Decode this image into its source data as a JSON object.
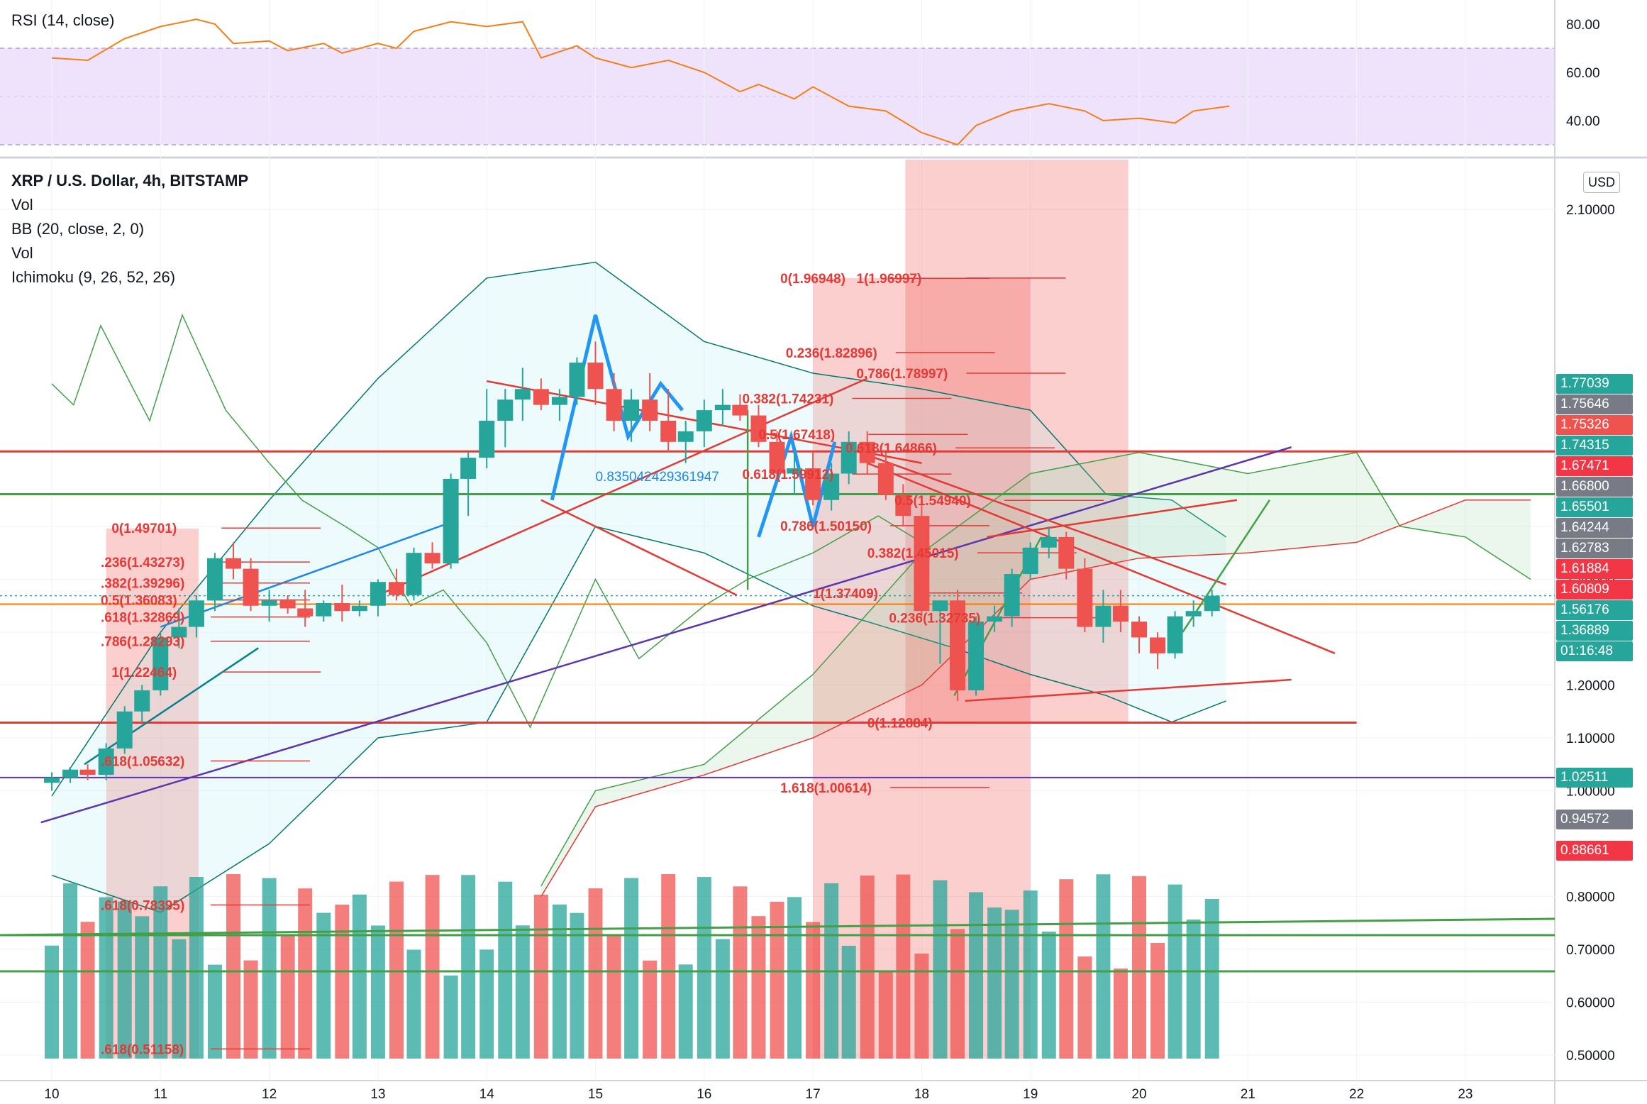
{
  "rsi": {
    "label": "RSI (14, close)",
    "ticks": [
      "80.00",
      "60.00",
      "40.00"
    ],
    "tick_values": [
      80,
      60,
      40
    ],
    "band": [
      30,
      70
    ],
    "color": "#f57f17"
  },
  "main": {
    "legend": [
      "XRP / U.S. Dollar, 4h, BITSTAMP",
      "Vol",
      "BB (20, close, 2, 0)",
      "Vol",
      "Ichimoku (9, 26, 52, 26)"
    ],
    "currency": "USD",
    "y_ticks": [
      "2.10000",
      "1.50000",
      "1.40000",
      "1.30000",
      "1.20000",
      "1.10000",
      "1.00000",
      "0.80000",
      "0.70000",
      "0.60000",
      "0.50000"
    ],
    "y_tick_values": [
      2.1,
      1.5,
      1.4,
      1.3,
      1.2,
      1.1,
      1.0,
      0.8,
      0.7,
      0.6,
      0.5
    ],
    "x_ticks": [
      "10",
      "11",
      "12",
      "13",
      "14",
      "15",
      "16",
      "17",
      "18",
      "19",
      "20",
      "21",
      "22",
      "23"
    ],
    "x_tick_positions": [
      10,
      11,
      12,
      13,
      14,
      15,
      16,
      17,
      18,
      19,
      20,
      21,
      22,
      23
    ],
    "countdown": "01:16:48"
  },
  "price_tags": [
    {
      "text": "1.77039",
      "value": 1.77039,
      "color": "#26a69a"
    },
    {
      "text": "1.75646",
      "value": 1.75646,
      "color": "#787b86"
    },
    {
      "text": "1.75326",
      "value": 1.75326,
      "color": "#ef5350"
    },
    {
      "text": "1.74315",
      "value": 1.74315,
      "color": "#26a69a"
    },
    {
      "text": "1.67471",
      "value": 1.67471,
      "color": "#f23645"
    },
    {
      "text": "1.66800",
      "value": 1.668,
      "color": "#787b86"
    },
    {
      "text": "1.65501",
      "value": 1.65501,
      "color": "#26a69a"
    },
    {
      "text": "1.64244",
      "value": 1.64244,
      "color": "#787b86"
    },
    {
      "text": "1.62783",
      "value": 1.62783,
      "color": "#787b86"
    },
    {
      "text": "1.61884",
      "value": 1.61884,
      "color": "#f23645"
    },
    {
      "text": "1.60809",
      "value": 1.60809,
      "color": "#f23645"
    },
    {
      "text": "1.56176",
      "value": 1.56176,
      "color": "#26a69a"
    },
    {
      "text": "1.36889",
      "value": 1.36889,
      "color": "#26a69a"
    },
    {
      "text": "1.02511",
      "value": 1.02511,
      "color": "#26a69a"
    },
    {
      "text": "0.94572",
      "value": 0.94572,
      "color": "#787b86"
    },
    {
      "text": "0.88661",
      "value": 0.88661,
      "color": "#f23645"
    }
  ],
  "fib_labels": [
    {
      "text": "0(1.49701)",
      "x": 10.55,
      "y": 1.49701
    },
    {
      "text": ".236(1.43273)",
      "x": 10.45,
      "y": 1.43273
    },
    {
      "text": ".382(1.39296)",
      "x": 10.45,
      "y": 1.39296
    },
    {
      "text": "0.5(1.36083)",
      "x": 10.45,
      "y": 1.36083
    },
    {
      "text": ".618(1.32869)",
      "x": 10.45,
      "y": 1.32869
    },
    {
      "text": ".786(1.28293)",
      "x": 10.45,
      "y": 1.28293
    },
    {
      "text": "1(1.22464)",
      "x": 10.55,
      "y": 1.22464
    },
    {
      "text": ".618(1.05632)",
      "x": 10.45,
      "y": 1.05632
    },
    {
      "text": ".618(0.78395)",
      "x": 10.45,
      "y": 0.78395
    },
    {
      "text": ".618(0.51158)",
      "x": 10.45,
      "y": 0.51158
    },
    {
      "text": "0(1.96948)",
      "x": 16.7,
      "y": 1.96948
    },
    {
      "text": "1(1.96997)",
      "x": 17.4,
      "y": 1.96997
    },
    {
      "text": "0.236(1.82896)",
      "x": 16.75,
      "y": 1.82896
    },
    {
      "text": "0.786(1.78997)",
      "x": 17.4,
      "y": 1.78997
    },
    {
      "text": "0.382(1.74231)",
      "x": 16.35,
      "y": 1.74231
    },
    {
      "text": "0.5(1.67418)",
      "x": 16.5,
      "y": 1.67418
    },
    {
      "text": "0.618(1.64866)",
      "x": 17.3,
      "y": 1.64866
    },
    {
      "text": "0.618(1.59912)",
      "x": 16.35,
      "y": 1.59912
    },
    {
      "text": "0.5(1.54940)",
      "x": 17.75,
      "y": 1.5494
    },
    {
      "text": "0.786(1.50150)",
      "x": 16.7,
      "y": 1.5015
    },
    {
      "text": "0.382(1.45015)",
      "x": 17.5,
      "y": 1.45015
    },
    {
      "text": "1(1.37409)",
      "x": 17.0,
      "y": 1.37409
    },
    {
      "text": "0.236(1.32735)",
      "x": 17.7,
      "y": 1.32735
    },
    {
      "text": "0(1.12884)",
      "x": 17.5,
      "y": 1.12884
    },
    {
      "text": "1.618(1.00614)",
      "x": 16.7,
      "y": 1.00614
    },
    {
      "text": "0.835042429361947",
      "x": 15.0,
      "y": 1.595
    }
  ],
  "chart_data": {
    "type": "candlestick",
    "x_unit": "day of month",
    "candles": [
      {
        "x": 10.0,
        "o": 1.015,
        "h": 1.035,
        "l": 1.0,
        "c": 1.025
      },
      {
        "x": 10.17,
        "o": 1.025,
        "h": 1.045,
        "l": 1.015,
        "c": 1.04
      },
      {
        "x": 10.33,
        "o": 1.04,
        "h": 1.05,
        "l": 1.02,
        "c": 1.03
      },
      {
        "x": 10.5,
        "o": 1.03,
        "h": 1.09,
        "l": 1.02,
        "c": 1.08
      },
      {
        "x": 10.67,
        "o": 1.08,
        "h": 1.16,
        "l": 1.07,
        "c": 1.15
      },
      {
        "x": 10.83,
        "o": 1.15,
        "h": 1.2,
        "l": 1.13,
        "c": 1.19
      },
      {
        "x": 11.0,
        "o": 1.19,
        "h": 1.3,
        "l": 1.18,
        "c": 1.29
      },
      {
        "x": 11.17,
        "o": 1.29,
        "h": 1.345,
        "l": 1.27,
        "c": 1.31
      },
      {
        "x": 11.33,
        "o": 1.31,
        "h": 1.37,
        "l": 1.29,
        "c": 1.36
      },
      {
        "x": 11.5,
        "o": 1.36,
        "h": 1.45,
        "l": 1.34,
        "c": 1.44
      },
      {
        "x": 11.67,
        "o": 1.44,
        "h": 1.47,
        "l": 1.4,
        "c": 1.42
      },
      {
        "x": 11.83,
        "o": 1.42,
        "h": 1.44,
        "l": 1.34,
        "c": 1.35
      },
      {
        "x": 12.0,
        "o": 1.35,
        "h": 1.38,
        "l": 1.32,
        "c": 1.36
      },
      {
        "x": 12.17,
        "o": 1.36,
        "h": 1.37,
        "l": 1.335,
        "c": 1.345
      },
      {
        "x": 12.33,
        "o": 1.345,
        "h": 1.38,
        "l": 1.31,
        "c": 1.33
      },
      {
        "x": 12.5,
        "o": 1.33,
        "h": 1.36,
        "l": 1.32,
        "c": 1.355
      },
      {
        "x": 12.67,
        "o": 1.355,
        "h": 1.39,
        "l": 1.32,
        "c": 1.34
      },
      {
        "x": 12.83,
        "o": 1.34,
        "h": 1.36,
        "l": 1.33,
        "c": 1.35
      },
      {
        "x": 13.0,
        "o": 1.35,
        "h": 1.4,
        "l": 1.33,
        "c": 1.395
      },
      {
        "x": 13.17,
        "o": 1.395,
        "h": 1.42,
        "l": 1.36,
        "c": 1.37
      },
      {
        "x": 13.33,
        "o": 1.37,
        "h": 1.46,
        "l": 1.36,
        "c": 1.45
      },
      {
        "x": 13.5,
        "o": 1.45,
        "h": 1.47,
        "l": 1.42,
        "c": 1.43
      },
      {
        "x": 13.67,
        "o": 1.43,
        "h": 1.6,
        "l": 1.42,
        "c": 1.59
      },
      {
        "x": 13.83,
        "o": 1.59,
        "h": 1.64,
        "l": 1.52,
        "c": 1.63
      },
      {
        "x": 14.0,
        "o": 1.63,
        "h": 1.76,
        "l": 1.61,
        "c": 1.7
      },
      {
        "x": 14.17,
        "o": 1.7,
        "h": 1.76,
        "l": 1.65,
        "c": 1.74
      },
      {
        "x": 14.33,
        "o": 1.74,
        "h": 1.8,
        "l": 1.7,
        "c": 1.76
      },
      {
        "x": 14.5,
        "o": 1.76,
        "h": 1.78,
        "l": 1.72,
        "c": 1.73
      },
      {
        "x": 14.67,
        "o": 1.73,
        "h": 1.76,
        "l": 1.7,
        "c": 1.745
      },
      {
        "x": 14.83,
        "o": 1.745,
        "h": 1.82,
        "l": 1.73,
        "c": 1.81
      },
      {
        "x": 15.0,
        "o": 1.81,
        "h": 1.85,
        "l": 1.73,
        "c": 1.76
      },
      {
        "x": 15.17,
        "o": 1.76,
        "h": 1.79,
        "l": 1.68,
        "c": 1.7
      },
      {
        "x": 15.33,
        "o": 1.7,
        "h": 1.76,
        "l": 1.66,
        "c": 1.74
      },
      {
        "x": 15.5,
        "o": 1.74,
        "h": 1.79,
        "l": 1.68,
        "c": 1.7
      },
      {
        "x": 15.67,
        "o": 1.7,
        "h": 1.76,
        "l": 1.64,
        "c": 1.66
      },
      {
        "x": 15.83,
        "o": 1.66,
        "h": 1.7,
        "l": 1.62,
        "c": 1.68
      },
      {
        "x": 16.0,
        "o": 1.68,
        "h": 1.74,
        "l": 1.65,
        "c": 1.72
      },
      {
        "x": 16.17,
        "o": 1.72,
        "h": 1.76,
        "l": 1.69,
        "c": 1.73
      },
      {
        "x": 16.33,
        "o": 1.73,
        "h": 1.75,
        "l": 1.7,
        "c": 1.71
      },
      {
        "x": 16.5,
        "o": 1.71,
        "h": 1.73,
        "l": 1.65,
        "c": 1.66
      },
      {
        "x": 16.67,
        "o": 1.66,
        "h": 1.68,
        "l": 1.59,
        "c": 1.6
      },
      {
        "x": 16.83,
        "o": 1.6,
        "h": 1.64,
        "l": 1.56,
        "c": 1.61
      },
      {
        "x": 17.0,
        "o": 1.61,
        "h": 1.64,
        "l": 1.54,
        "c": 1.55
      },
      {
        "x": 17.17,
        "o": 1.55,
        "h": 1.62,
        "l": 1.53,
        "c": 1.6
      },
      {
        "x": 17.33,
        "o": 1.6,
        "h": 1.68,
        "l": 1.58,
        "c": 1.66
      },
      {
        "x": 17.5,
        "o": 1.66,
        "h": 1.68,
        "l": 1.6,
        "c": 1.62
      },
      {
        "x": 17.67,
        "o": 1.62,
        "h": 1.64,
        "l": 1.55,
        "c": 1.56
      },
      {
        "x": 17.83,
        "o": 1.56,
        "h": 1.58,
        "l": 1.5,
        "c": 1.52
      },
      {
        "x": 18.0,
        "o": 1.52,
        "h": 1.54,
        "l": 1.33,
        "c": 1.34
      },
      {
        "x": 18.17,
        "o": 1.34,
        "h": 1.36,
        "l": 1.24,
        "c": 1.36
      },
      {
        "x": 18.33,
        "o": 1.36,
        "h": 1.38,
        "l": 1.17,
        "c": 1.19
      },
      {
        "x": 18.5,
        "o": 1.19,
        "h": 1.33,
        "l": 1.18,
        "c": 1.32
      },
      {
        "x": 18.67,
        "o": 1.32,
        "h": 1.35,
        "l": 1.3,
        "c": 1.33
      },
      {
        "x": 18.83,
        "o": 1.33,
        "h": 1.42,
        "l": 1.31,
        "c": 1.41
      },
      {
        "x": 19.0,
        "o": 1.41,
        "h": 1.47,
        "l": 1.4,
        "c": 1.46
      },
      {
        "x": 19.17,
        "o": 1.46,
        "h": 1.5,
        "l": 1.44,
        "c": 1.48
      },
      {
        "x": 19.33,
        "o": 1.48,
        "h": 1.49,
        "l": 1.4,
        "c": 1.42
      },
      {
        "x": 19.5,
        "o": 1.42,
        "h": 1.44,
        "l": 1.3,
        "c": 1.31
      },
      {
        "x": 19.67,
        "o": 1.31,
        "h": 1.38,
        "l": 1.28,
        "c": 1.35
      },
      {
        "x": 19.83,
        "o": 1.35,
        "h": 1.38,
        "l": 1.3,
        "c": 1.32
      },
      {
        "x": 20.0,
        "o": 1.32,
        "h": 1.33,
        "l": 1.26,
        "c": 1.29
      },
      {
        "x": 20.17,
        "o": 1.29,
        "h": 1.3,
        "l": 1.23,
        "c": 1.26
      },
      {
        "x": 20.33,
        "o": 1.26,
        "h": 1.34,
        "l": 1.25,
        "c": 1.33
      },
      {
        "x": 20.5,
        "o": 1.33,
        "h": 1.36,
        "l": 1.31,
        "c": 1.34
      },
      {
        "x": 20.67,
        "o": 1.34,
        "h": 1.38,
        "l": 1.33,
        "c": 1.369
      }
    ],
    "volume_color_up": "#26a69a",
    "volume_color_down": "#ef5350",
    "rsi_series": [
      {
        "x": 10.0,
        "v": 66
      },
      {
        "x": 10.33,
        "v": 65
      },
      {
        "x": 10.67,
        "v": 74
      },
      {
        "x": 11.0,
        "v": 79
      },
      {
        "x": 11.33,
        "v": 82
      },
      {
        "x": 11.5,
        "v": 80
      },
      {
        "x": 11.67,
        "v": 72
      },
      {
        "x": 12.0,
        "v": 73
      },
      {
        "x": 12.17,
        "v": 69
      },
      {
        "x": 12.5,
        "v": 72
      },
      {
        "x": 12.67,
        "v": 68
      },
      {
        "x": 13.0,
        "v": 72
      },
      {
        "x": 13.17,
        "v": 70
      },
      {
        "x": 13.33,
        "v": 77
      },
      {
        "x": 13.67,
        "v": 81
      },
      {
        "x": 14.0,
        "v": 79
      },
      {
        "x": 14.33,
        "v": 81
      },
      {
        "x": 14.5,
        "v": 66
      },
      {
        "x": 14.83,
        "v": 71
      },
      {
        "x": 15.0,
        "v": 66
      },
      {
        "x": 15.33,
        "v": 62
      },
      {
        "x": 15.67,
        "v": 65
      },
      {
        "x": 16.0,
        "v": 60
      },
      {
        "x": 16.33,
        "v": 52
      },
      {
        "x": 16.5,
        "v": 55
      },
      {
        "x": 16.83,
        "v": 49
      },
      {
        "x": 17.0,
        "v": 54
      },
      {
        "x": 17.33,
        "v": 46
      },
      {
        "x": 17.67,
        "v": 44
      },
      {
        "x": 18.0,
        "v": 35
      },
      {
        "x": 18.33,
        "v": 30
      },
      {
        "x": 18.5,
        "v": 38
      },
      {
        "x": 18.83,
        "v": 44
      },
      {
        "x": 19.17,
        "v": 47
      },
      {
        "x": 19.5,
        "v": 44
      },
      {
        "x": 19.67,
        "v": 40
      },
      {
        "x": 20.0,
        "v": 41
      },
      {
        "x": 20.33,
        "v": 39
      },
      {
        "x": 20.5,
        "v": 44
      },
      {
        "x": 20.83,
        "v": 46
      }
    ]
  }
}
